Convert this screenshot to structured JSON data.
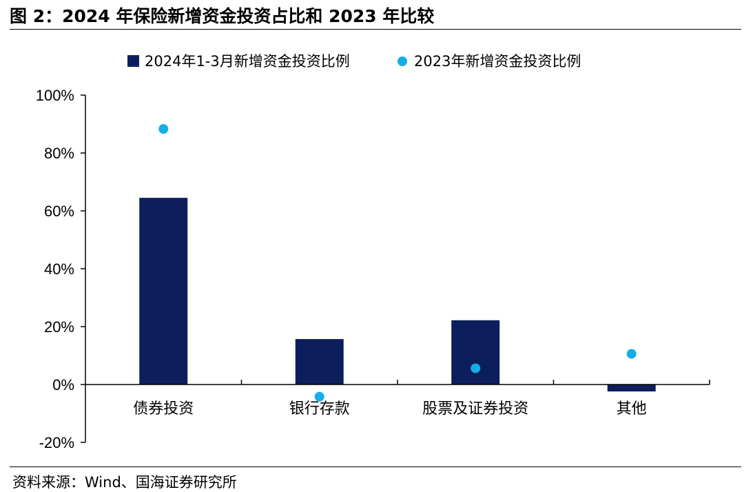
{
  "header": {
    "title": "图 2：2024 年保险新增资金投资占比和 2023 年比较"
  },
  "footer": {
    "source": "资料来源：Wind、国海证券研究所"
  },
  "colors": {
    "bar": "#0c1f5c",
    "dot": "#14aee8",
    "axis": "#000000"
  },
  "chart_data": {
    "type": "bar",
    "title": "",
    "xlabel": "",
    "ylabel": "",
    "categories": [
      "债券投资",
      "银行存款",
      "股票及证券投资",
      "其他"
    ],
    "series": [
      {
        "name": "2024年1-3月新增资金投资比例",
        "kind": "bar",
        "values": [
          64.5,
          15.7,
          22.2,
          -2.4
        ]
      },
      {
        "name": "2023年新增资金投资比例",
        "kind": "scatter",
        "values": [
          88.3,
          -4.2,
          5.6,
          10.6
        ]
      }
    ],
    "ylim": [
      -20,
      100
    ],
    "yticks": [
      -20,
      0,
      20,
      40,
      60,
      80,
      100
    ],
    "ytick_labels": [
      "-20%",
      "0%",
      "20%",
      "40%",
      "60%",
      "80%",
      "100%"
    ],
    "grid": false,
    "legend": "top"
  }
}
